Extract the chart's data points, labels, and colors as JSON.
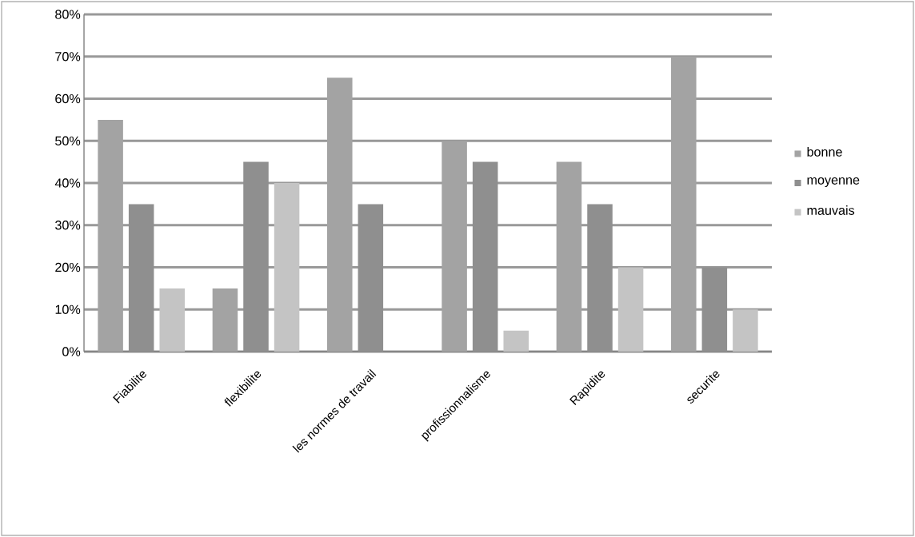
{
  "chart_data": {
    "type": "bar",
    "categories": [
      "Fiabilite",
      "flexibilite",
      "les normes de travail",
      "profissionnalisme",
      "Rapidite",
      "securite"
    ],
    "series": [
      {
        "name": "bonne",
        "color": "#a3a3a3",
        "values": [
          55,
          15,
          65,
          50,
          45,
          70
        ]
      },
      {
        "name": "moyenne",
        "color": "#8f8f8f",
        "values": [
          35,
          45,
          35,
          45,
          35,
          20
        ]
      },
      {
        "name": "mauvais",
        "color": "#c4c4c4",
        "values": [
          15,
          40,
          0,
          5,
          20,
          10
        ]
      }
    ],
    "ylim": [
      0,
      80
    ],
    "yticks": [
      {
        "value": 0,
        "label": "0%"
      },
      {
        "value": 10,
        "label": "10%"
      },
      {
        "value": 20,
        "label": "20%"
      },
      {
        "value": 30,
        "label": "30%"
      },
      {
        "value": 40,
        "label": "40%"
      },
      {
        "value": 50,
        "label": "50%"
      },
      {
        "value": 60,
        "label": "60%"
      },
      {
        "value": 70,
        "label": "70%"
      },
      {
        "value": 80,
        "label": "80%"
      }
    ],
    "grid": "y",
    "legend": "right"
  }
}
